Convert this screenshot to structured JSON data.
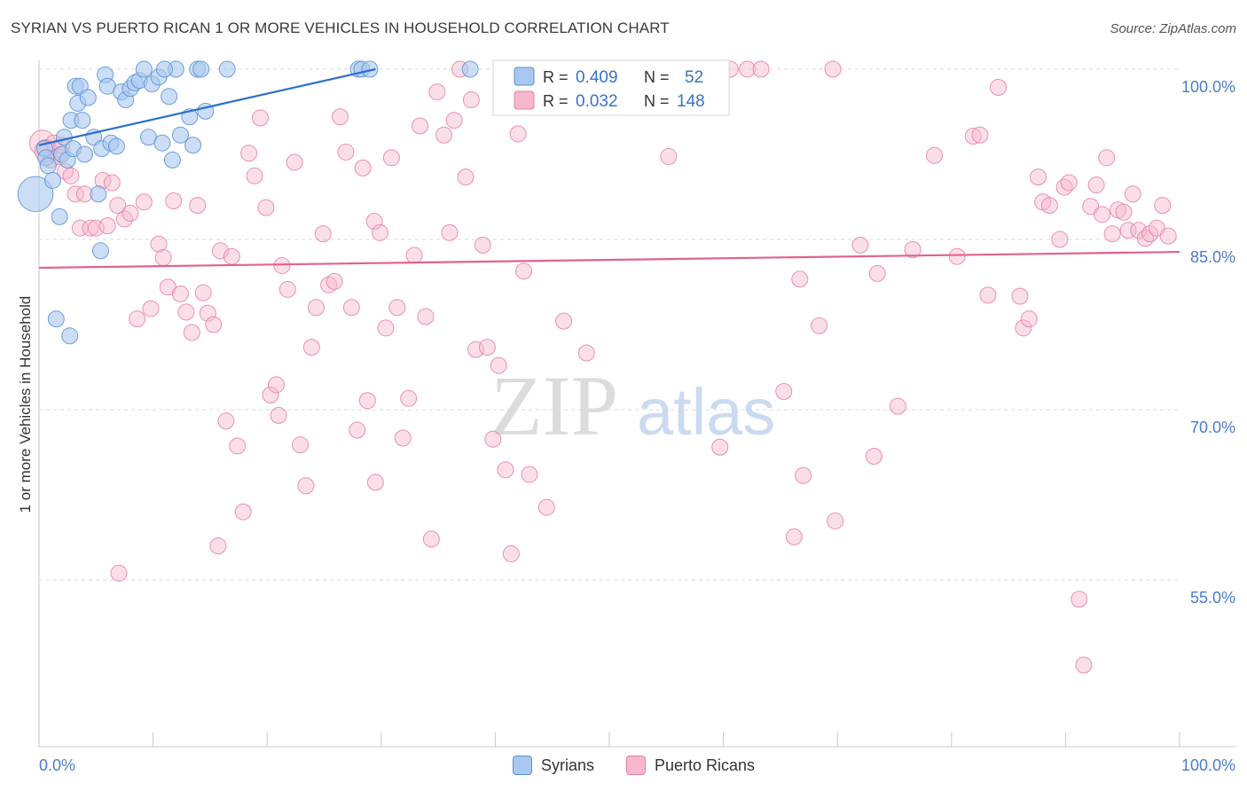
{
  "header": {
    "title": "SYRIAN VS PUERTO RICAN 1 OR MORE VEHICLES IN HOUSEHOLD CORRELATION CHART",
    "source": "Source: ZipAtlas.com"
  },
  "watermark": {
    "zip": "ZIP",
    "atlas": "atlas"
  },
  "colors": {
    "syrians_fill": "#a9c8f0",
    "syrians_stroke": "#5b8fd6",
    "syrians_line": "#2d6fcf",
    "pr_fill": "#f7b8cb",
    "pr_stroke": "#e8809f",
    "pr_line": "#e0638c",
    "axis_label": "#4a7cc9",
    "grid": "#d9d9d9"
  },
  "stats_legend": {
    "rows": [
      {
        "r_label": "R =",
        "r_value": "0.409",
        "n_label": "N =",
        "n_value": "52"
      },
      {
        "r_label": "R =",
        "r_value": "0.032",
        "n_label": "N =",
        "n_value": "148"
      }
    ]
  },
  "bottom_legend": {
    "syrians": "Syrians",
    "puerto_ricans": "Puerto Ricans"
  },
  "chart_data": {
    "type": "scatter",
    "title": "SYRIAN VS PUERTO RICAN 1 OR MORE VEHICLES IN HOUSEHOLD CORRELATION CHART",
    "xlabel": "",
    "ylabel": "1 or more Vehicles in Household",
    "xlim": [
      0,
      100
    ],
    "ylim": [
      40,
      100
    ],
    "x_tick_labels": [
      "0.0%",
      "100.0%"
    ],
    "y_ticks": [
      55,
      70,
      85,
      100
    ],
    "y_tick_labels": [
      "55.0%",
      "70.0%",
      "85.0%",
      "100.0%"
    ],
    "grid": true,
    "legend_position": "top-center",
    "series": [
      {
        "name": "Syrians",
        "r": 0.409,
        "n": 52,
        "trend": {
          "x": [
            0,
            29.5
          ],
          "y": [
            93.3,
            100
          ]
        },
        "points": [
          [
            -0.5,
            89,
            2.2
          ],
          [
            0.5,
            93,
            1
          ],
          [
            0.6,
            92.2,
            1
          ],
          [
            0.8,
            91.5,
            1
          ],
          [
            1.2,
            90.2,
            1
          ],
          [
            1.8,
            87,
            1
          ],
          [
            2.0,
            92.5,
            1
          ],
          [
            2.2,
            94,
            1
          ],
          [
            2.5,
            92,
            1
          ],
          [
            2.8,
            95.5,
            1
          ],
          [
            3.0,
            93,
            1
          ],
          [
            3.2,
            98.5,
            1
          ],
          [
            3.4,
            97,
            1
          ],
          [
            3.6,
            98.5,
            1
          ],
          [
            3.8,
            95.5,
            1
          ],
          [
            4.0,
            92.5,
            1
          ],
          [
            4.3,
            97.5,
            1
          ],
          [
            4.8,
            94,
            1
          ],
          [
            5.2,
            89,
            1
          ],
          [
            5.5,
            93,
            1
          ],
          [
            5.8,
            99.5,
            1
          ],
          [
            6.0,
            98.5,
            1
          ],
          [
            6.3,
            93.5,
            1
          ],
          [
            6.8,
            93.2,
            1
          ],
          [
            7.2,
            98,
            1
          ],
          [
            7.6,
            97.3,
            1
          ],
          [
            8.0,
            98.3,
            1
          ],
          [
            8.4,
            98.8,
            1
          ],
          [
            8.8,
            99,
            1
          ],
          [
            9.2,
            100,
            1
          ],
          [
            9.6,
            94,
            1
          ],
          [
            9.9,
            98.7,
            1
          ],
          [
            10.5,
            99.3,
            1
          ],
          [
            10.8,
            93.5,
            1
          ],
          [
            11.4,
            97.6,
            1
          ],
          [
            11.7,
            92,
            1
          ],
          [
            12.0,
            100,
            1
          ],
          [
            12.4,
            94.2,
            1
          ],
          [
            13.2,
            95.8,
            1
          ],
          [
            13.5,
            93.3,
            1
          ],
          [
            13.9,
            100,
            1
          ],
          [
            14.2,
            100,
            1
          ],
          [
            14.6,
            96.3,
            1
          ],
          [
            16.5,
            100,
            1
          ],
          [
            5.4,
            84.0,
            1
          ],
          [
            1.5,
            78,
            1
          ],
          [
            2.7,
            76.5,
            1
          ],
          [
            28,
            100,
            1
          ],
          [
            28.3,
            100,
            1
          ],
          [
            29,
            100,
            1
          ],
          [
            37.8,
            100,
            1
          ],
          [
            11.0,
            100,
            1
          ]
        ]
      },
      {
        "name": "Puerto Ricans",
        "r": 0.032,
        "n": 148,
        "trend": {
          "x": [
            0,
            100
          ],
          "y": [
            82.5,
            83.9
          ]
        },
        "points": [
          [
            0.3,
            93.5,
            1.6
          ],
          [
            0.6,
            92.8,
            1.4
          ],
          [
            1.0,
            92.0,
            1
          ],
          [
            1.3,
            93.5,
            1
          ],
          [
            1.7,
            92.3,
            1
          ],
          [
            2.0,
            93.3,
            1
          ],
          [
            2.3,
            91.0,
            1
          ],
          [
            2.8,
            90.6,
            1
          ],
          [
            3.2,
            89.0,
            1
          ],
          [
            3.6,
            86.0,
            1
          ],
          [
            4.0,
            89.0,
            1
          ],
          [
            4.5,
            86.0,
            1
          ],
          [
            5.0,
            86.0,
            1
          ],
          [
            5.6,
            90.2,
            1
          ],
          [
            6.0,
            86.2,
            1
          ],
          [
            6.4,
            90.0,
            1
          ],
          [
            6.9,
            88.0,
            1
          ],
          [
            7.5,
            86.8,
            1
          ],
          [
            8.0,
            87.3,
            1
          ],
          [
            8.6,
            78.0,
            1
          ],
          [
            9.2,
            88.3,
            1
          ],
          [
            9.8,
            78.9,
            1
          ],
          [
            10.5,
            84.6,
            1
          ],
          [
            10.9,
            83.4,
            1
          ],
          [
            11.3,
            80.8,
            1
          ],
          [
            11.8,
            88.4,
            1
          ],
          [
            12.4,
            80.2,
            1
          ],
          [
            12.9,
            78.6,
            1
          ],
          [
            13.4,
            76.8,
            1
          ],
          [
            13.9,
            88.0,
            1
          ],
          [
            14.4,
            80.3,
            1
          ],
          [
            14.8,
            78.5,
            1
          ],
          [
            15.3,
            77.5,
            1
          ],
          [
            15.9,
            84.0,
            1
          ],
          [
            16.4,
            69.0,
            1
          ],
          [
            16.9,
            83.5,
            1
          ],
          [
            17.4,
            66.8,
            1
          ],
          [
            17.9,
            61.0,
            1
          ],
          [
            18.4,
            92.6,
            1
          ],
          [
            18.9,
            90.6,
            1
          ],
          [
            19.4,
            95.7,
            1
          ],
          [
            19.9,
            87.8,
            1
          ],
          [
            20.3,
            71.3,
            1
          ],
          [
            20.8,
            72.2,
            1
          ],
          [
            21.3,
            82.7,
            1
          ],
          [
            21.8,
            80.6,
            1
          ],
          [
            22.4,
            91.8,
            1
          ],
          [
            22.9,
            66.9,
            1
          ],
          [
            23.4,
            63.3,
            1
          ],
          [
            23.9,
            75.5,
            1
          ],
          [
            24.3,
            79.0,
            1
          ],
          [
            24.9,
            85.5,
            1
          ],
          [
            25.4,
            81.0,
            1
          ],
          [
            25.9,
            81.3,
            1
          ],
          [
            26.4,
            95.8,
            1
          ],
          [
            26.9,
            92.7,
            1
          ],
          [
            27.4,
            79.0,
            1
          ],
          [
            27.9,
            68.2,
            1
          ],
          [
            28.4,
            91.3,
            1
          ],
          [
            28.8,
            70.8,
            1
          ],
          [
            29.4,
            86.6,
            1
          ],
          [
            29.9,
            85.6,
            1
          ],
          [
            30.4,
            77.2,
            1
          ],
          [
            30.9,
            92.2,
            1
          ],
          [
            31.4,
            79.0,
            1
          ],
          [
            31.9,
            67.5,
            1
          ],
          [
            32.4,
            71.0,
            1
          ],
          [
            32.9,
            83.6,
            1
          ],
          [
            33.4,
            95.0,
            1
          ],
          [
            33.9,
            78.2,
            1
          ],
          [
            34.4,
            58.6,
            1
          ],
          [
            34.9,
            98.0,
            1
          ],
          [
            35.5,
            94.2,
            1
          ],
          [
            36.0,
            85.6,
            1
          ],
          [
            36.4,
            95.5,
            1
          ],
          [
            36.9,
            100,
            1
          ],
          [
            37.4,
            90.5,
            1
          ],
          [
            37.9,
            97.3,
            1
          ],
          [
            38.3,
            75.3,
            1
          ],
          [
            38.9,
            84.5,
            1
          ],
          [
            39.3,
            75.5,
            1
          ],
          [
            39.8,
            67.4,
            1
          ],
          [
            40.3,
            73.9,
            1
          ],
          [
            40.9,
            64.7,
            1
          ],
          [
            41.4,
            57.3,
            1
          ],
          [
            42.0,
            94.3,
            1
          ],
          [
            42.5,
            82.2,
            1
          ],
          [
            43.0,
            64.3,
            1
          ],
          [
            43.9,
            100,
            1
          ],
          [
            44.5,
            61.4,
            1
          ],
          [
            45.3,
            100,
            1
          ],
          [
            46.0,
            77.8,
            1
          ],
          [
            48.5,
            100,
            1
          ],
          [
            55.2,
            92.3,
            1
          ],
          [
            58.4,
            100,
            1
          ],
          [
            59.7,
            66.7,
            1
          ],
          [
            60.6,
            100,
            1
          ],
          [
            62.1,
            100,
            1
          ],
          [
            63.3,
            100,
            1
          ],
          [
            65.3,
            71.6,
            1
          ],
          [
            66.2,
            58.8,
            1
          ],
          [
            66.7,
            81.5,
            1
          ],
          [
            67.0,
            64.2,
            1
          ],
          [
            68.4,
            77.4,
            1
          ],
          [
            69.6,
            100,
            1
          ],
          [
            69.8,
            60.2,
            1
          ],
          [
            72.0,
            84.5,
            1
          ],
          [
            73.2,
            65.9,
            1
          ],
          [
            73.5,
            82.0,
            1
          ],
          [
            75.3,
            70.3,
            1
          ],
          [
            76.6,
            84.1,
            1
          ],
          [
            78.5,
            92.4,
            1
          ],
          [
            80.5,
            83.5,
            1
          ],
          [
            81.9,
            94.1,
            1
          ],
          [
            82.5,
            94.2,
            1
          ],
          [
            83.2,
            80.1,
            1
          ],
          [
            84.1,
            98.4,
            1
          ],
          [
            86.0,
            80.0,
            1
          ],
          [
            86.3,
            77.2,
            1
          ],
          [
            86.8,
            78.0,
            1
          ],
          [
            87.6,
            90.5,
            1
          ],
          [
            88.0,
            88.3,
            1
          ],
          [
            88.6,
            88.0,
            1
          ],
          [
            89.5,
            85.0,
            1
          ],
          [
            89.9,
            89.6,
            1
          ],
          [
            90.3,
            90.0,
            1
          ],
          [
            91.2,
            53.3,
            1
          ],
          [
            91.6,
            47.5,
            1
          ],
          [
            92.2,
            87.9,
            1
          ],
          [
            92.7,
            89.8,
            1
          ],
          [
            93.2,
            87.2,
            1
          ],
          [
            93.6,
            92.2,
            1
          ],
          [
            94.1,
            85.5,
            1
          ],
          [
            94.6,
            87.6,
            1
          ],
          [
            95.1,
            87.4,
            1
          ],
          [
            95.5,
            85.8,
            1
          ],
          [
            95.9,
            89.0,
            1
          ],
          [
            96.4,
            85.8,
            1
          ],
          [
            97.0,
            85.1,
            1
          ],
          [
            97.4,
            85.5,
            1
          ],
          [
            98.0,
            86.0,
            1
          ],
          [
            98.5,
            88.0,
            1
          ],
          [
            99.0,
            85.3,
            1
          ],
          [
            7.0,
            55.6,
            1
          ],
          [
            15.7,
            58.0,
            1
          ],
          [
            29.5,
            63.6,
            1
          ],
          [
            21.0,
            69.5,
            1
          ],
          [
            48.0,
            75.0,
            1
          ]
        ]
      }
    ]
  }
}
